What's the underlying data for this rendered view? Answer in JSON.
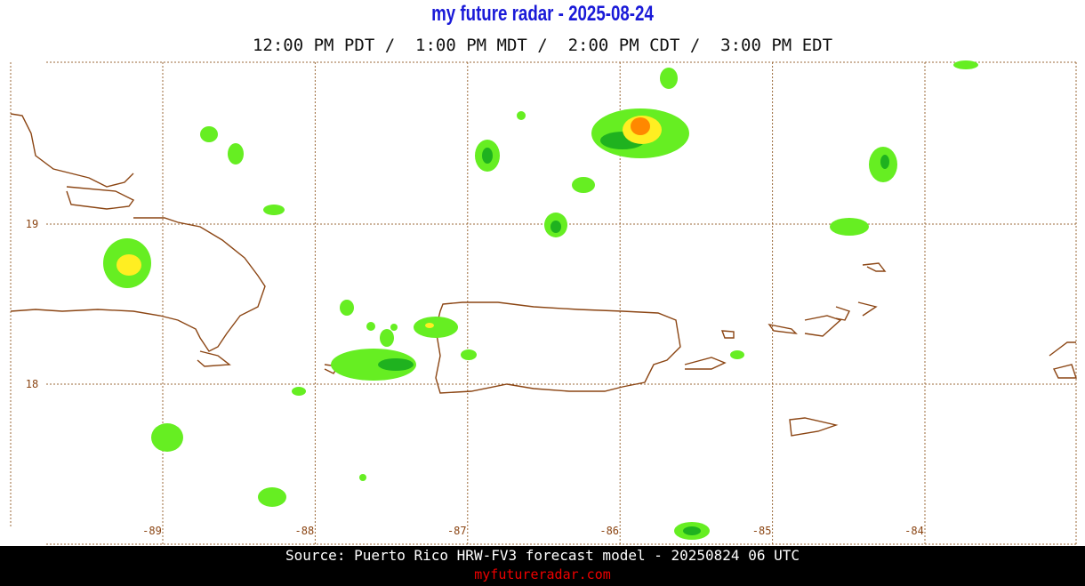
{
  "header": {
    "title": "my future radar - 2025-08-24",
    "times": "12:00 PM PDT /  1:00 PM MDT /  2:00 PM CDT /  3:00 PM EDT"
  },
  "map": {
    "lat_labels": [
      19,
      18
    ],
    "lon_labels": [
      -89,
      -88,
      -87,
      -86,
      -85,
      -84
    ]
  },
  "footer": {
    "source": "Source: Puerto Rico HRW-FV3 forecast model - 20250824 06 UTC",
    "site": "myfutureradar.com"
  }
}
